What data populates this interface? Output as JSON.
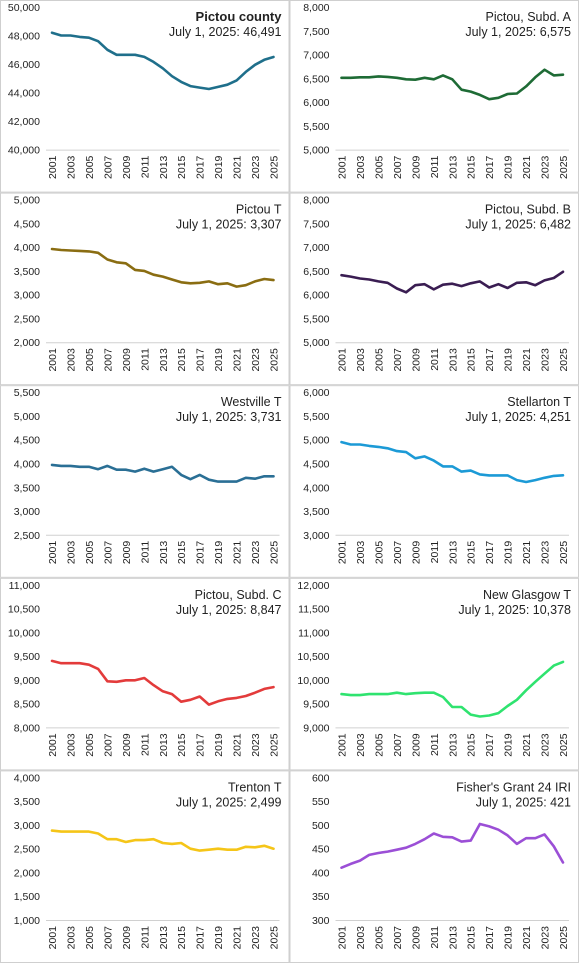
{
  "chart_data": [
    {
      "type": "line",
      "title": "Pictou county",
      "subtitle": "July 1, 2025: 46,491",
      "color": "#1f6f8b",
      "ylim": [
        40000,
        50000
      ],
      "yticks": [
        "40,000",
        "42,000",
        "44,000",
        "46,000",
        "48,000",
        "50,000"
      ],
      "x": [
        2001,
        2002,
        2003,
        2004,
        2005,
        2006,
        2007,
        2008,
        2009,
        2010,
        2011,
        2012,
        2013,
        2014,
        2015,
        2016,
        2017,
        2018,
        2019,
        2020,
        2021,
        2022,
        2023,
        2024,
        2025
      ],
      "values": [
        48200,
        48000,
        48000,
        47900,
        47850,
        47600,
        47000,
        46650,
        46650,
        46650,
        46500,
        46150,
        45700,
        45150,
        44750,
        44450,
        44350,
        44250,
        44400,
        44550,
        44850,
        45450,
        45950,
        46300,
        46491
      ],
      "xticks": [
        "2001",
        "2003",
        "2005",
        "2007",
        "2009",
        "2011",
        "2013",
        "2015",
        "2017",
        "2019",
        "2021",
        "2023",
        "2025"
      ]
    },
    {
      "type": "line",
      "title": "Pictou, Subd. A",
      "subtitle": "July 1, 2025: 6,575",
      "color": "#1e6b35",
      "ylim": [
        5000,
        8000
      ],
      "yticks": [
        "5,000",
        "5,500",
        "6,000",
        "6,500",
        "7,000",
        "7,500",
        "8,000"
      ],
      "x": [
        2001,
        2002,
        2003,
        2004,
        2005,
        2006,
        2007,
        2008,
        2009,
        2010,
        2011,
        2012,
        2013,
        2014,
        2015,
        2016,
        2017,
        2018,
        2019,
        2020,
        2021,
        2022,
        2023,
        2024,
        2025
      ],
      "values": [
        6510,
        6510,
        6520,
        6520,
        6540,
        6530,
        6510,
        6480,
        6470,
        6510,
        6480,
        6560,
        6480,
        6260,
        6220,
        6150,
        6060,
        6090,
        6170,
        6180,
        6330,
        6520,
        6680,
        6560,
        6575
      ],
      "xticks": [
        "2001",
        "2003",
        "2005",
        "2007",
        "2009",
        "2011",
        "2013",
        "2015",
        "2017",
        "2019",
        "2021",
        "2023",
        "2025"
      ]
    },
    {
      "type": "line",
      "title": "Pictou T",
      "subtitle": "July 1, 2025: 3,307",
      "color": "#8a6d12",
      "ylim": [
        2000,
        5000
      ],
      "yticks": [
        "2,000",
        "2,500",
        "3,000",
        "3,500",
        "4,000",
        "4,500",
        "5,000"
      ],
      "x": [
        2001,
        2002,
        2003,
        2004,
        2005,
        2006,
        2007,
        2008,
        2009,
        2010,
        2011,
        2012,
        2013,
        2014,
        2015,
        2016,
        2017,
        2018,
        2019,
        2020,
        2021,
        2022,
        2023,
        2024,
        2025
      ],
      "values": [
        3960,
        3940,
        3930,
        3920,
        3910,
        3880,
        3740,
        3680,
        3660,
        3520,
        3500,
        3420,
        3380,
        3320,
        3260,
        3240,
        3250,
        3280,
        3220,
        3240,
        3170,
        3200,
        3280,
        3330,
        3307
      ],
      "xticks": [
        "2001",
        "2003",
        "2005",
        "2007",
        "2009",
        "2011",
        "2013",
        "2015",
        "2017",
        "2019",
        "2021",
        "2023",
        "2025"
      ]
    },
    {
      "type": "line",
      "title": "Pictou, Subd. B",
      "subtitle": "July 1, 2025: 6,482",
      "color": "#3a1d52",
      "ylim": [
        5000,
        8000
      ],
      "yticks": [
        "5,000",
        "5,500",
        "6,000",
        "6,500",
        "7,000",
        "7,500",
        "8,000"
      ],
      "x": [
        2001,
        2002,
        2003,
        2004,
        2005,
        2006,
        2007,
        2008,
        2009,
        2010,
        2011,
        2012,
        2013,
        2014,
        2015,
        2016,
        2017,
        2018,
        2019,
        2020,
        2021,
        2022,
        2023,
        2024,
        2025
      ],
      "values": [
        6410,
        6380,
        6340,
        6320,
        6280,
        6250,
        6130,
        6050,
        6200,
        6220,
        6110,
        6210,
        6230,
        6180,
        6240,
        6280,
        6150,
        6220,
        6140,
        6250,
        6260,
        6200,
        6300,
        6350,
        6482
      ],
      "xticks": [
        "2001",
        "2003",
        "2005",
        "2007",
        "2009",
        "2011",
        "2013",
        "2015",
        "2017",
        "2019",
        "2021",
        "2023",
        "2025"
      ]
    },
    {
      "type": "line",
      "title": "Westville T",
      "subtitle": "July 1, 2025: 3,731",
      "color": "#2a6f95",
      "ylim": [
        2500,
        5500
      ],
      "yticks": [
        "2,500",
        "3,000",
        "3,500",
        "4,000",
        "4,500",
        "5,000",
        "5,500"
      ],
      "x": [
        2001,
        2002,
        2003,
        2004,
        2005,
        2006,
        2007,
        2008,
        2009,
        2010,
        2011,
        2012,
        2013,
        2014,
        2015,
        2016,
        2017,
        2018,
        2019,
        2020,
        2021,
        2022,
        2023,
        2024,
        2025
      ],
      "values": [
        3970,
        3950,
        3950,
        3930,
        3930,
        3880,
        3950,
        3870,
        3870,
        3830,
        3890,
        3830,
        3880,
        3930,
        3760,
        3670,
        3760,
        3660,
        3620,
        3620,
        3620,
        3700,
        3680,
        3730,
        3731
      ],
      "xticks": [
        "2001",
        "2003",
        "2005",
        "2007",
        "2009",
        "2011",
        "2013",
        "2015",
        "2017",
        "2019",
        "2021",
        "2023",
        "2025"
      ]
    },
    {
      "type": "line",
      "title": "Stellarton T",
      "subtitle": "July 1, 2025: 4,251",
      "color": "#1c9ad6",
      "ylim": [
        3000,
        6000
      ],
      "yticks": [
        "3,000",
        "3,500",
        "4,000",
        "4,500",
        "5,000",
        "5,500",
        "6,000"
      ],
      "x": [
        2001,
        2002,
        2003,
        2004,
        2005,
        2006,
        2007,
        2008,
        2009,
        2010,
        2011,
        2012,
        2013,
        2014,
        2015,
        2016,
        2017,
        2018,
        2019,
        2020,
        2021,
        2022,
        2023,
        2024,
        2025
      ],
      "values": [
        4950,
        4900,
        4900,
        4870,
        4850,
        4820,
        4760,
        4740,
        4610,
        4650,
        4560,
        4440,
        4440,
        4330,
        4350,
        4270,
        4250,
        4250,
        4250,
        4150,
        4110,
        4150,
        4200,
        4240,
        4251
      ],
      "xticks": [
        "2001",
        "2003",
        "2005",
        "2007",
        "2009",
        "2011",
        "2013",
        "2015",
        "2017",
        "2019",
        "2021",
        "2023",
        "2025"
      ]
    },
    {
      "type": "line",
      "title": "Pictou, Subd. C",
      "subtitle": "July 1, 2025: 8,847",
      "color": "#e33b3b",
      "ylim": [
        8000,
        11000
      ],
      "yticks": [
        "8,000",
        "8,500",
        "9,000",
        "9,500",
        "10,000",
        "10,500",
        "11,000"
      ],
      "x": [
        2001,
        2002,
        2003,
        2004,
        2005,
        2006,
        2007,
        2008,
        2009,
        2010,
        2011,
        2012,
        2013,
        2014,
        2015,
        2016,
        2017,
        2018,
        2019,
        2020,
        2021,
        2022,
        2023,
        2024,
        2025
      ],
      "values": [
        9400,
        9350,
        9350,
        9350,
        9320,
        9230,
        8970,
        8960,
        8990,
        8990,
        9040,
        8890,
        8760,
        8700,
        8540,
        8580,
        8650,
        8480,
        8550,
        8600,
        8620,
        8660,
        8730,
        8810,
        8847
      ],
      "xticks": [
        "2001",
        "2003",
        "2005",
        "2007",
        "2009",
        "2011",
        "2013",
        "2015",
        "2017",
        "2019",
        "2021",
        "2023",
        "2025"
      ]
    },
    {
      "type": "line",
      "title": "New Glasgow T",
      "subtitle": "July 1, 2025: 10,378",
      "color": "#2fe36f",
      "ylim": [
        9000,
        12000
      ],
      "yticks": [
        "9,000",
        "9,500",
        "10,000",
        "10,500",
        "11,000",
        "11,500",
        "12,000"
      ],
      "x": [
        2001,
        2002,
        2003,
        2004,
        2005,
        2006,
        2007,
        2008,
        2009,
        2010,
        2011,
        2012,
        2013,
        2014,
        2015,
        2016,
        2017,
        2018,
        2019,
        2020,
        2021,
        2022,
        2023,
        2024,
        2025
      ],
      "values": [
        9700,
        9680,
        9680,
        9700,
        9700,
        9700,
        9730,
        9700,
        9720,
        9730,
        9730,
        9640,
        9430,
        9430,
        9270,
        9230,
        9250,
        9300,
        9450,
        9580,
        9780,
        9960,
        10130,
        10300,
        10378
      ],
      "xticks": [
        "2001",
        "2003",
        "2005",
        "2007",
        "2009",
        "2011",
        "2013",
        "2015",
        "2017",
        "2019",
        "2021",
        "2023",
        "2025"
      ]
    },
    {
      "type": "line",
      "title": "Trenton T",
      "subtitle": "July 1, 2025: 2,499",
      "color": "#f5c518",
      "ylim": [
        1000,
        4000
      ],
      "yticks": [
        "1,000",
        "1,500",
        "2,000",
        "2,500",
        "3,000",
        "3,500",
        "4,000"
      ],
      "x": [
        2001,
        2002,
        2003,
        2004,
        2005,
        2006,
        2007,
        2008,
        2009,
        2010,
        2011,
        2012,
        2013,
        2014,
        2015,
        2016,
        2017,
        2018,
        2019,
        2020,
        2021,
        2022,
        2023,
        2024,
        2025
      ],
      "values": [
        2880,
        2860,
        2860,
        2860,
        2860,
        2820,
        2700,
        2700,
        2640,
        2680,
        2680,
        2700,
        2620,
        2600,
        2620,
        2500,
        2460,
        2480,
        2500,
        2480,
        2480,
        2540,
        2530,
        2560,
        2499
      ],
      "xticks": [
        "2001",
        "2003",
        "2005",
        "2007",
        "2009",
        "2011",
        "2013",
        "2015",
        "2017",
        "2019",
        "2021",
        "2023",
        "2025"
      ]
    },
    {
      "type": "line",
      "title": "Fisher's Grant 24  IRI",
      "subtitle": "July 1, 2025: 421",
      "color": "#9b4fd6",
      "ylim": [
        300,
        600
      ],
      "yticks": [
        "300",
        "350",
        "400",
        "450",
        "500",
        "550",
        "600"
      ],
      "x": [
        2001,
        2002,
        2003,
        2004,
        2005,
        2006,
        2007,
        2008,
        2009,
        2010,
        2011,
        2012,
        2013,
        2014,
        2015,
        2016,
        2017,
        2018,
        2019,
        2020,
        2021,
        2022,
        2023,
        2024,
        2025
      ],
      "values": [
        410,
        418,
        425,
        437,
        441,
        444,
        448,
        452,
        460,
        470,
        482,
        475,
        474,
        465,
        467,
        502,
        497,
        490,
        478,
        460,
        472,
        472,
        480,
        455,
        421
      ],
      "xticks": [
        "2001",
        "2003",
        "2005",
        "2007",
        "2009",
        "2011",
        "2013",
        "2015",
        "2017",
        "2019",
        "2021",
        "2023",
        "2025"
      ]
    }
  ]
}
